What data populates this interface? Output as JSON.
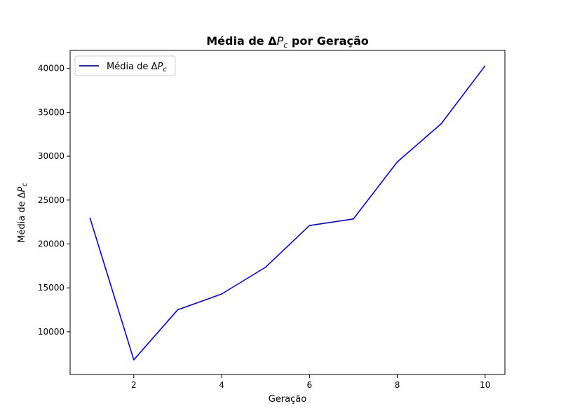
{
  "chart_data": {
    "type": "line",
    "title": "Média de ΔP_c por Geração",
    "title_parts": {
      "pre": "Média de Δ",
      "var": "P",
      "sub": "c",
      "post": " por Geração"
    },
    "xlabel": "Geração",
    "ylabel": "Média de ΔP_c",
    "ylabel_parts": {
      "pre": "Média de Δ",
      "var": "P",
      "sub": "c"
    },
    "xlim": [
      0.55,
      10.45
    ],
    "ylim": [
      5130,
      42050
    ],
    "xticks": [
      2,
      4,
      6,
      8,
      10
    ],
    "yticks": [
      10000,
      15000,
      20000,
      25000,
      30000,
      35000,
      40000
    ],
    "grid": false,
    "legend": {
      "location": "upper-left"
    },
    "series": [
      {
        "name": "Média de ΔP_c",
        "name_parts": {
          "pre": "Média de Δ",
          "var": "P",
          "sub": "c"
        },
        "color": "#0000ff",
        "x": [
          1,
          2,
          3,
          4,
          5,
          6,
          7,
          8,
          9,
          10
        ],
        "y": [
          23000,
          6800,
          12500,
          14300,
          17350,
          22100,
          22850,
          29350,
          33700,
          40300
        ]
      }
    ]
  }
}
